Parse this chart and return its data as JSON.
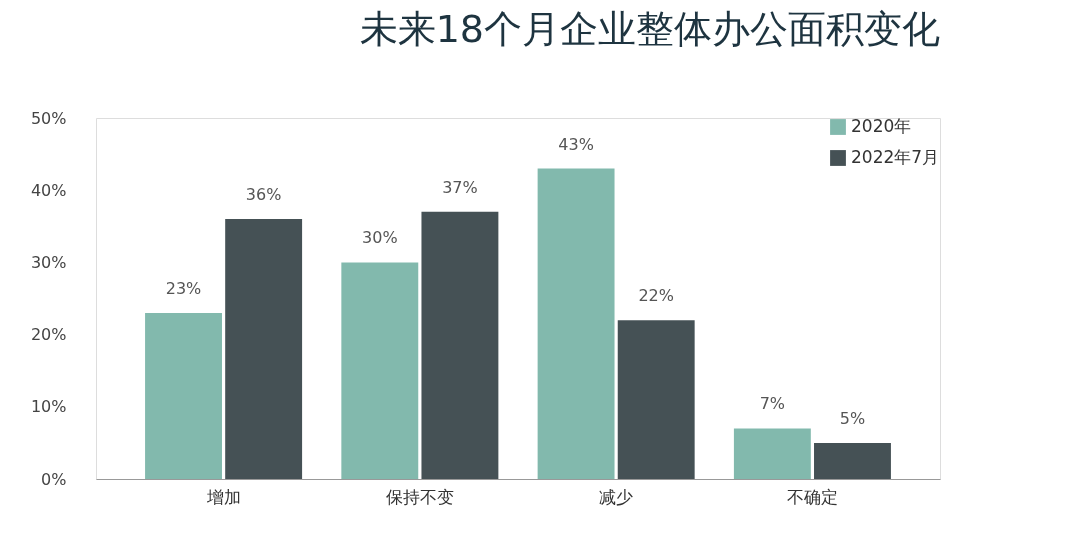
{
  "chart_data": {
    "type": "bar",
    "title": "未来18个月企业整体办公面积变化",
    "categories": [
      "增加",
      "保持不变",
      "减少",
      "不确定"
    ],
    "series": [
      {
        "name": "2020年",
        "color": "#82b9ad",
        "values": [
          23,
          30,
          43,
          7
        ],
        "value_labels": [
          "23%",
          "30%",
          "43%",
          "7%"
        ]
      },
      {
        "name": "2022年7月",
        "color": "#455155",
        "values": [
          36,
          37,
          22,
          5
        ],
        "value_labels": [
          "36%",
          "37%",
          "22%",
          "5%"
        ]
      }
    ],
    "ylim": [
      0,
      50
    ],
    "yticks": [
      {
        "value": 0,
        "label": "0%"
      },
      {
        "value": 10,
        "label": "10%"
      },
      {
        "value": 20,
        "label": "20%"
      },
      {
        "value": 30,
        "label": "30%"
      },
      {
        "value": 40,
        "label": "40%"
      },
      {
        "value": 50,
        "label": "50%"
      }
    ],
    "grid": false,
    "legend": "top right"
  }
}
